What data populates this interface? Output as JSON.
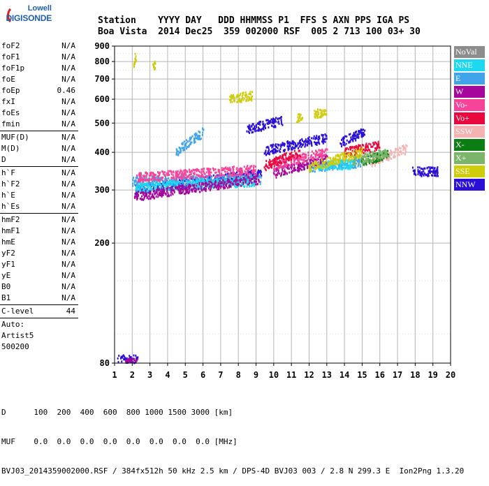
{
  "logo": {
    "line1": "Lowell",
    "line2": "DIGISONDE"
  },
  "header": {
    "line1": "Station    YYYY DAY   DDD HHMMSS P1  FFS S AXN PPS IGA PS",
    "line2": "Boa Vista  2014 Dec25  359 002000 RSF  005 2 713 100 03+ 30"
  },
  "params_group1": [
    {
      "k": "foF2",
      "v": "N/A"
    },
    {
      "k": "foF1",
      "v": "N/A"
    },
    {
      "k": "foF1p",
      "v": "N/A"
    },
    {
      "k": "foE",
      "v": "N/A"
    },
    {
      "k": "foEp",
      "v": "0.46"
    },
    {
      "k": "fxI",
      "v": "N/A"
    },
    {
      "k": "foEs",
      "v": "N/A"
    },
    {
      "k": "fmin",
      "v": "N/A"
    }
  ],
  "params_group2": [
    {
      "k": "MUF(D)",
      "v": "N/A"
    },
    {
      "k": "M(D)",
      "v": "N/A"
    },
    {
      "k": "D",
      "v": "N/A"
    }
  ],
  "params_group3": [
    {
      "k": "h`F",
      "v": "N/A"
    },
    {
      "k": "h`F2",
      "v": "N/A"
    },
    {
      "k": "h`E",
      "v": "N/A"
    },
    {
      "k": "h`Es",
      "v": "N/A"
    }
  ],
  "params_group4": [
    {
      "k": "hmF2",
      "v": "N/A"
    },
    {
      "k": "hmF1",
      "v": "N/A"
    },
    {
      "k": "hmE",
      "v": "N/A"
    },
    {
      "k": "yF2",
      "v": "N/A"
    },
    {
      "k": "yF1",
      "v": "N/A"
    },
    {
      "k": "yE",
      "v": "N/A"
    },
    {
      "k": "B0",
      "v": "N/A"
    },
    {
      "k": "B1",
      "v": "N/A"
    }
  ],
  "params_group5": [
    {
      "k": "C-level",
      "v": "44"
    }
  ],
  "autoscale": {
    "line1": "Auto:",
    "line2": "Artist5",
    "line3": "500200"
  },
  "legend": [
    {
      "label": "NoVal",
      "color": "#8c8c8c"
    },
    {
      "label": "NNE",
      "color": "#1ed8f0"
    },
    {
      "label": "E",
      "color": "#3fa4ea"
    },
    {
      "label": "W",
      "color": "#a5079c"
    },
    {
      "label": "Vo-",
      "color": "#f5449a"
    },
    {
      "label": "Vo+",
      "color": "#e8083e"
    },
    {
      "label": "SSW",
      "color": "#f4b2b2"
    },
    {
      "label": "X-",
      "color": "#0b7d12"
    },
    {
      "label": "X+",
      "color": "#7ab56a"
    },
    {
      "label": "SSE",
      "color": "#cfcd0b"
    },
    {
      "label": "NNW",
      "color": "#2a0fd6"
    }
  ],
  "bottom": {
    "line1": "D      100  200  400  600  800 1000 1500 3000 [km]",
    "line2": "MUF    0.0  0.0  0.0  0.0  0.0  0.0  0.0  0.0 [MHz]",
    "line3": "BVJ03_2014359002000.RSF / 384fx512h 50 kHz 2.5 km / DPS-4D BVJ03 003 / 2.8 N 299.3 E  Ion2Png 1.3.20"
  },
  "chart_data": {
    "type": "scatter",
    "title": "",
    "xlabel": "",
    "ylabel": "",
    "xlim": [
      1,
      20
    ],
    "ylim": [
      80,
      900
    ],
    "xticks": [
      "1",
      "2",
      "3",
      "4",
      "5",
      "6",
      "7",
      "8",
      "9",
      "10",
      "11",
      "12",
      "13",
      "14",
      "15",
      "16",
      "17",
      "18",
      "19",
      "20"
    ],
    "yticks": [
      "80",
      "200",
      "300",
      "400",
      "500",
      "600",
      "700",
      "800",
      "900"
    ],
    "grid": true,
    "y_scale": "log",
    "legend_position": "right",
    "series": [
      {
        "name": "NNW",
        "traces": [
          {
            "x": [
              2.2,
              9.3
            ],
            "y": [
              300,
              340
            ]
          },
          {
            "x": [
              9.5,
              13.0
            ],
            "y": [
              405,
              445
            ]
          },
          {
            "x": [
              13.8,
              15.2
            ],
            "y": [
              430,
              470
            ]
          },
          {
            "x": [
              8.5,
              10.5
            ],
            "y": [
              475,
              510
            ]
          },
          {
            "x": [
              17.8,
              19.3
            ],
            "y": [
              345,
              345
            ]
          },
          {
            "x": [
              1.2,
              2.3
            ],
            "y": [
              82,
              82
            ]
          }
        ]
      },
      {
        "name": "E",
        "traces": [
          {
            "x": [
              2.0,
              9.3
            ],
            "y": [
              320,
              325
            ]
          },
          {
            "x": [
              4.5,
              6.0
            ],
            "y": [
              400,
              465
            ]
          },
          {
            "x": [
              12.0,
              15.0
            ],
            "y": [
              355,
              370
            ]
          }
        ]
      },
      {
        "name": "NNE",
        "traces": [
          {
            "x": [
              2.2,
              9.0
            ],
            "y": [
              305,
              320
            ]
          },
          {
            "x": [
              12.5,
              14.5
            ],
            "y": [
              360,
              365
            ]
          }
        ]
      },
      {
        "name": "W",
        "traces": [
          {
            "x": [
              2.1,
              9.2
            ],
            "y": [
              285,
              325
            ]
          },
          {
            "x": [
              1.6,
              2.3
            ],
            "y": [
              80,
              80
            ]
          },
          {
            "x": [
              10.0,
              13.0
            ],
            "y": [
              340,
              380
            ]
          }
        ]
      },
      {
        "name": "Vo-",
        "traces": [
          {
            "x": [
              2.3,
              9.0
            ],
            "y": [
              330,
              350
            ]
          },
          {
            "x": [
              10.0,
              13.0
            ],
            "y": [
              360,
              400
            ]
          }
        ]
      },
      {
        "name": "Vo+",
        "traces": [
          {
            "x": [
              9.5,
              11.5
            ],
            "y": [
              360,
              400
            ]
          },
          {
            "x": [
              14.0,
              16.0
            ],
            "y": [
              400,
              420
            ]
          }
        ]
      },
      {
        "name": "SSW",
        "traces": [
          {
            "x": [
              15.5,
              17.5
            ],
            "y": [
              370,
              410
            ]
          }
        ]
      },
      {
        "name": "X-",
        "traces": [
          {
            "x": [
              15.0,
              16.5
            ],
            "y": [
              370,
              395
            ]
          }
        ]
      },
      {
        "name": "X+",
        "traces": [
          {
            "x": [
              14.5,
              16.5
            ],
            "y": [
              375,
              400
            ]
          }
        ]
      },
      {
        "name": "SSE",
        "traces": [
          {
            "x": [
              2.1,
              2.2
            ],
            "y": [
              770,
              840
            ]
          },
          {
            "x": [
              3.2,
              3.3
            ],
            "y": [
              775,
              780
            ]
          },
          {
            "x": [
              7.5,
              8.8
            ],
            "y": [
              600,
              615
            ]
          },
          {
            "x": [
              11.3,
              11.6
            ],
            "y": [
              515,
              525
            ]
          },
          {
            "x": [
              12.3,
              13.0
            ],
            "y": [
              535,
              545
            ]
          },
          {
            "x": [
              12.0,
              15.0
            ],
            "y": [
              355,
              400
            ]
          }
        ]
      }
    ]
  }
}
